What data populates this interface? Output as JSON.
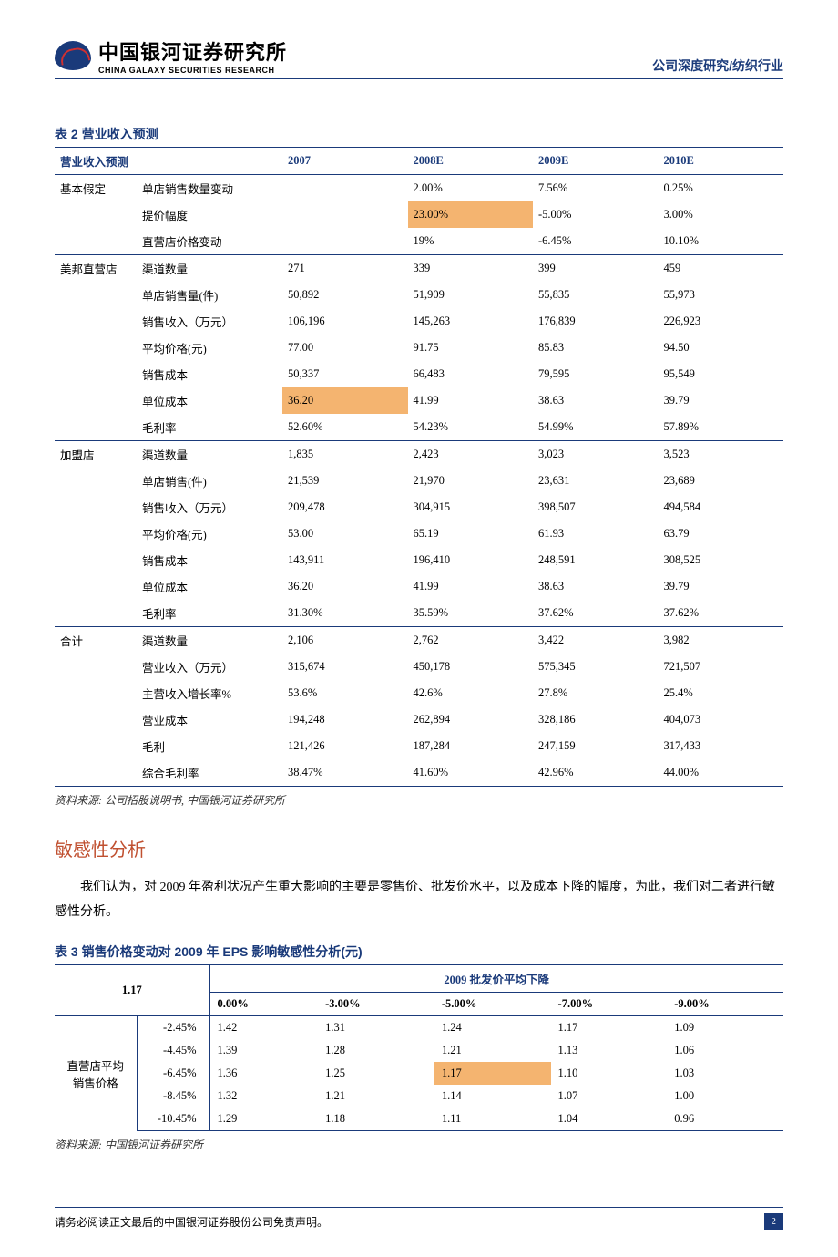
{
  "header": {
    "logo_cn": "中国银河证券研究所",
    "logo_en": "CHINA GALAXY SECURITIES RESEARCH",
    "right": "公司深度研究/纺织行业"
  },
  "t2": {
    "title": "表 2 营业收入预测",
    "head": [
      "营业收入预测",
      "",
      "2007",
      "2008E",
      "2009E",
      "2010E"
    ],
    "sections": [
      {
        "group": "基本假定",
        "rows": [
          {
            "label": "单店销售数量变动",
            "vals": [
              "",
              "2.00%",
              "7.56%",
              "0.25%"
            ],
            "hl": []
          },
          {
            "label": "提价幅度",
            "vals": [
              "",
              "23.00%",
              "-5.00%",
              "3.00%"
            ],
            "hl": [
              1
            ]
          },
          {
            "label": "直营店价格变动",
            "vals": [
              "",
              "19%",
              "-6.45%",
              "10.10%"
            ],
            "hl": []
          }
        ]
      },
      {
        "group": "美邦直营店",
        "rows": [
          {
            "label": "渠道数量",
            "vals": [
              "271",
              "339",
              "399",
              "459"
            ],
            "hl": []
          },
          {
            "label": "单店销售量(件)",
            "vals": [
              "50,892",
              "51,909",
              "55,835",
              "55,973"
            ],
            "hl": []
          },
          {
            "label": "销售收入（万元）",
            "vals": [
              "106,196",
              "145,263",
              "176,839",
              "226,923"
            ],
            "hl": []
          },
          {
            "label": "平均价格(元)",
            "vals": [
              "77.00",
              "91.75",
              "85.83",
              "94.50"
            ],
            "hl": []
          },
          {
            "label": "销售成本",
            "vals": [
              "50,337",
              "66,483",
              "79,595",
              "95,549"
            ],
            "hl": []
          },
          {
            "label": "单位成本",
            "vals": [
              "36.20",
              "41.99",
              "38.63",
              "39.79"
            ],
            "hl": [
              0
            ]
          },
          {
            "label": "毛利率",
            "vals": [
              "52.60%",
              "54.23%",
              "54.99%",
              "57.89%"
            ],
            "hl": []
          }
        ]
      },
      {
        "group": "加盟店",
        "rows": [
          {
            "label": "渠道数量",
            "vals": [
              "1,835",
              "2,423",
              "3,023",
              "3,523"
            ],
            "hl": []
          },
          {
            "label": "单店销售(件)",
            "vals": [
              "21,539",
              "21,970",
              "23,631",
              "23,689"
            ],
            "hl": []
          },
          {
            "label": "销售收入（万元）",
            "vals": [
              "209,478",
              "304,915",
              "398,507",
              "494,584"
            ],
            "hl": []
          },
          {
            "label": "平均价格(元)",
            "vals": [
              "53.00",
              "65.19",
              "61.93",
              "63.79"
            ],
            "hl": []
          },
          {
            "label": "销售成本",
            "vals": [
              "143,911",
              "196,410",
              "248,591",
              "308,525"
            ],
            "hl": []
          },
          {
            "label": "单位成本",
            "vals": [
              "36.20",
              "41.99",
              "38.63",
              "39.79"
            ],
            "hl": []
          },
          {
            "label": "毛利率",
            "vals": [
              "31.30%",
              "35.59%",
              "37.62%",
              "37.62%"
            ],
            "hl": []
          }
        ]
      },
      {
        "group": "合计",
        "rows": [
          {
            "label": "渠道数量",
            "vals": [
              "2,106",
              "2,762",
              "3,422",
              "3,982"
            ],
            "hl": []
          },
          {
            "label": "营业收入（万元）",
            "vals": [
              "315,674",
              "450,178",
              "575,345",
              "721,507"
            ],
            "hl": []
          },
          {
            "label": "主营收入增长率%",
            "vals": [
              "53.6%",
              "42.6%",
              "27.8%",
              "25.4%"
            ],
            "hl": []
          },
          {
            "label": "营业成本",
            "vals": [
              "194,248",
              "262,894",
              "328,186",
              "404,073"
            ],
            "hl": []
          },
          {
            "label": "毛利",
            "vals": [
              "121,426",
              "187,284",
              "247,159",
              "317,433"
            ],
            "hl": []
          },
          {
            "label": "综合毛利率",
            "vals": [
              "38.47%",
              "41.60%",
              "42.96%",
              "44.00%"
            ],
            "hl": []
          }
        ]
      }
    ],
    "source": "资料来源: 公司招股说明书, 中国银河证券研究所"
  },
  "sens": {
    "heading": "敏感性分析",
    "para": "我们认为，对 2009 年盈利状况产生重大影响的主要是零售价、批发价水平，以及成本下降的幅度，为此，我们对二者进行敏感性分析。"
  },
  "t3": {
    "title": "表 3 销售价格变动对 2009 年 EPS 影响敏感性分析(元)",
    "lead": "1.17",
    "group_header": "2009 批发价平均下降",
    "cols": [
      "0.00%",
      "-3.00%",
      "-5.00%",
      "-7.00%",
      "-9.00%"
    ],
    "row_header": "直营店平均销售价格",
    "rows": [
      {
        "lab": "-2.45%",
        "vals": [
          "1.42",
          "1.31",
          "1.24",
          "1.17",
          "1.09"
        ],
        "hl": -1
      },
      {
        "lab": "-4.45%",
        "vals": [
          "1.39",
          "1.28",
          "1.21",
          "1.13",
          "1.06"
        ],
        "hl": -1
      },
      {
        "lab": "-6.45%",
        "vals": [
          "1.36",
          "1.25",
          "1.17",
          "1.10",
          "1.03"
        ],
        "hl": 2
      },
      {
        "lab": "-8.45%",
        "vals": [
          "1.32",
          "1.21",
          "1.14",
          "1.07",
          "1.00"
        ],
        "hl": -1
      },
      {
        "lab": "-10.45%",
        "vals": [
          "1.29",
          "1.18",
          "1.11",
          "1.04",
          "0.96"
        ],
        "hl": -1
      }
    ],
    "source": "资料来源: 中国银河证券研究所"
  },
  "footer": {
    "text": "请务必阅读正文最后的中国银河证券股份公司免责声明。",
    "page": "2"
  },
  "colors": {
    "accent": "#1a3a7a",
    "highlight": "#f4b470",
    "heading": "#c05030"
  }
}
